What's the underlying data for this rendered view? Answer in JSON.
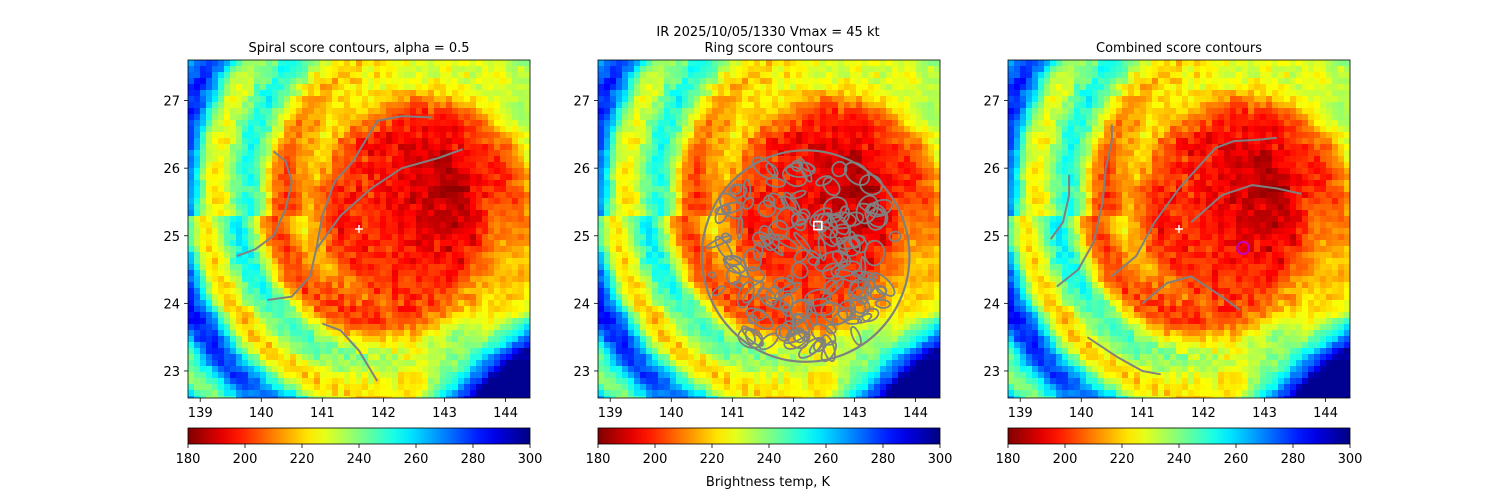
{
  "figure": {
    "suptitle": "IR  2025/10/05/1330    Vmax = 45 kt",
    "colorbar_label": "Brightness temp, K"
  },
  "chart_data": [
    {
      "type": "heatmap",
      "title": "Spiral score contours, alpha =  0.5",
      "xlim": [
        138.8,
        144.4
      ],
      "ylim": [
        22.6,
        27.6
      ],
      "xticks": [
        139,
        140,
        141,
        142,
        143,
        144
      ],
      "yticks": [
        23,
        24,
        25,
        26,
        27
      ],
      "colorbar": {
        "ticks": [
          180,
          200,
          220,
          240,
          260,
          280,
          300
        ],
        "range": [
          180,
          300
        ],
        "colormap": "jet_r"
      },
      "center_marker": {
        "x": 141.6,
        "y": 25.1,
        "symbol": "+",
        "color": "#ffffff"
      },
      "contour_color": "#808080",
      "contours": [
        [
          [
            139.6,
            24.7
          ],
          [
            139.9,
            24.8
          ],
          [
            140.2,
            25.0
          ],
          [
            140.4,
            25.4
          ],
          [
            140.5,
            25.8
          ],
          [
            140.4,
            26.1
          ],
          [
            140.2,
            26.25
          ]
        ],
        [
          [
            140.1,
            24.05
          ],
          [
            140.5,
            24.1
          ],
          [
            140.8,
            24.4
          ],
          [
            140.9,
            24.8
          ],
          [
            141.0,
            25.3
          ],
          [
            141.2,
            25.8
          ],
          [
            141.5,
            26.1
          ],
          [
            141.7,
            26.4
          ],
          [
            141.9,
            26.7
          ],
          [
            142.3,
            26.77
          ],
          [
            142.8,
            26.75
          ]
        ],
        [
          [
            140.9,
            24.8
          ],
          [
            141.3,
            25.3
          ],
          [
            141.8,
            25.7
          ],
          [
            142.3,
            26.0
          ],
          [
            142.9,
            26.15
          ],
          [
            143.3,
            26.28
          ]
        ],
        [
          [
            141.0,
            23.7
          ],
          [
            141.3,
            23.6
          ],
          [
            141.6,
            23.3
          ],
          [
            141.8,
            23.0
          ],
          [
            141.9,
            22.85
          ]
        ]
      ]
    },
    {
      "type": "heatmap",
      "title": "Ring score contours",
      "xlim": [
        138.8,
        144.4
      ],
      "ylim": [
        22.6,
        27.6
      ],
      "xticks": [
        139,
        140,
        141,
        142,
        143,
        144
      ],
      "yticks": [
        23,
        24,
        25,
        26,
        27
      ],
      "colorbar": {
        "ticks": [
          180,
          200,
          220,
          240,
          260,
          280,
          300
        ],
        "range": [
          180,
          300
        ],
        "colormap": "jet_r"
      },
      "center_marker": {
        "x": 142.4,
        "y": 25.15,
        "symbol": "square",
        "color": "#ffffff"
      },
      "contour_color": "#808080",
      "ring_region": {
        "center": [
          142.2,
          24.7
        ],
        "radius_deg": 1.7
      }
    },
    {
      "type": "heatmap",
      "title": "Combined score contours",
      "xlim": [
        138.8,
        144.4
      ],
      "ylim": [
        22.6,
        27.6
      ],
      "xticks": [
        139,
        140,
        141,
        142,
        143,
        144
      ],
      "yticks": [
        23,
        24,
        25,
        26,
        27
      ],
      "colorbar": {
        "ticks": [
          180,
          200,
          220,
          240,
          260,
          280,
          300
        ],
        "range": [
          180,
          300
        ],
        "colormap": "jet_r"
      },
      "center_marker": {
        "x": 141.6,
        "y": 25.1,
        "symbol": "+",
        "color": "#ffffff"
      },
      "best_marker": {
        "x": 142.65,
        "y": 24.82,
        "symbol": "circle",
        "color": "#c000c0"
      },
      "contour_color": "#808080",
      "contours": [
        [
          [
            139.5,
            24.95
          ],
          [
            139.7,
            25.2
          ],
          [
            139.8,
            25.6
          ],
          [
            139.8,
            25.9
          ]
        ],
        [
          [
            139.6,
            24.25
          ],
          [
            139.95,
            24.5
          ],
          [
            140.2,
            24.9
          ],
          [
            140.35,
            25.5
          ],
          [
            140.4,
            26.0
          ],
          [
            140.5,
            26.4
          ],
          [
            140.5,
            26.65
          ]
        ],
        [
          [
            140.5,
            24.4
          ],
          [
            140.9,
            24.7
          ],
          [
            141.2,
            25.2
          ],
          [
            141.6,
            25.7
          ],
          [
            141.9,
            26.0
          ],
          [
            142.2,
            26.3
          ],
          [
            142.5,
            26.4
          ],
          [
            142.9,
            26.42
          ],
          [
            143.2,
            26.45
          ]
        ],
        [
          [
            141.0,
            24.0
          ],
          [
            141.4,
            24.3
          ],
          [
            141.8,
            24.4
          ],
          [
            142.3,
            24.1
          ],
          [
            142.6,
            23.9
          ]
        ],
        [
          [
            141.8,
            25.2
          ],
          [
            142.3,
            25.6
          ],
          [
            142.8,
            25.75
          ],
          [
            143.2,
            25.7
          ],
          [
            143.6,
            25.62
          ]
        ],
        [
          [
            140.1,
            23.5
          ],
          [
            140.6,
            23.2
          ],
          [
            141.0,
            23.0
          ],
          [
            141.3,
            22.95
          ]
        ]
      ]
    }
  ]
}
